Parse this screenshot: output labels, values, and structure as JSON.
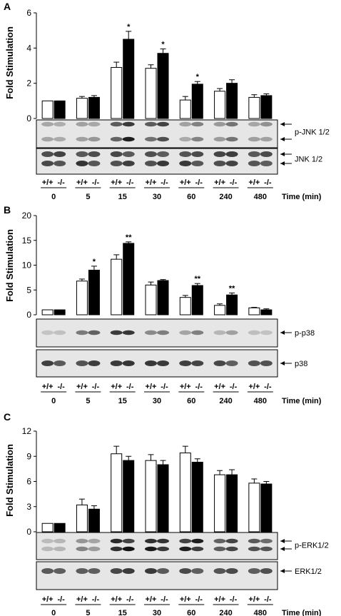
{
  "chart_data": [
    {
      "type": "bar",
      "panel": "A",
      "ylabel": "Fold Stimulation",
      "ylim": [
        0,
        6
      ],
      "yticks": [
        0,
        2,
        4,
        6
      ],
      "categories": [
        "0",
        "5",
        "15",
        "30",
        "60",
        "240",
        "480"
      ],
      "xlabel": "Time (min)",
      "genotypes": [
        "+/+",
        "-/-"
      ],
      "series": [
        {
          "color": "#ffffff",
          "values": [
            1.0,
            1.15,
            2.9,
            2.85,
            1.05,
            1.55,
            1.2
          ],
          "errors": [
            0.0,
            0.1,
            0.3,
            0.2,
            0.2,
            0.15,
            0.15
          ]
        },
        {
          "color": "#000000",
          "values": [
            1.0,
            1.2,
            4.5,
            3.7,
            1.95,
            2.0,
            1.3
          ],
          "errors": [
            0.0,
            0.1,
            0.45,
            0.25,
            0.15,
            0.2,
            0.1
          ]
        }
      ],
      "significance": [
        "",
        "",
        "*",
        "*",
        "*",
        "",
        ""
      ],
      "blots": [
        {
          "label": "p-JNK 1/2",
          "arrows": 2
        },
        {
          "label": "JNK 1/2",
          "arrows": 2
        }
      ]
    },
    {
      "type": "bar",
      "panel": "B",
      "ylabel": "Fold Stimulation",
      "ylim": [
        0,
        20
      ],
      "yticks": [
        0,
        5,
        10,
        15,
        20
      ],
      "categories": [
        "0",
        "5",
        "15",
        "30",
        "60",
        "240",
        "480"
      ],
      "xlabel": "Time (min)",
      "genotypes": [
        "+/+",
        "-/-"
      ],
      "series": [
        {
          "color": "#ffffff",
          "values": [
            1.0,
            6.8,
            11.2,
            6.0,
            3.5,
            1.9,
            1.4
          ],
          "errors": [
            0.0,
            0.4,
            0.9,
            0.6,
            0.4,
            0.3,
            0.1
          ]
        },
        {
          "color": "#000000",
          "values": [
            1.0,
            9.0,
            14.4,
            6.9,
            5.9,
            4.0,
            1.0
          ],
          "errors": [
            0.0,
            0.8,
            0.3,
            0.2,
            0.4,
            0.4,
            0.2
          ]
        }
      ],
      "significance": [
        "",
        "*",
        "**",
        "",
        "**",
        "**",
        ""
      ],
      "blots": [
        {
          "label": "p-p38",
          "arrows": 1
        },
        {
          "label": "p38",
          "arrows": 1
        }
      ]
    },
    {
      "type": "bar",
      "panel": "C",
      "ylabel": "Fold Stimulation",
      "ylim": [
        0,
        12
      ],
      "yticks": [
        0,
        3,
        6,
        9,
        12
      ],
      "categories": [
        "0",
        "5",
        "15",
        "30",
        "60",
        "240",
        "480"
      ],
      "xlabel": "Time (min)",
      "genotypes": [
        "+/+",
        "-/-"
      ],
      "series": [
        {
          "color": "#ffffff",
          "values": [
            1.0,
            3.2,
            9.3,
            8.5,
            9.4,
            6.8,
            5.8
          ],
          "errors": [
            0.0,
            0.7,
            0.9,
            0.7,
            0.8,
            0.5,
            0.5
          ]
        },
        {
          "color": "#000000",
          "values": [
            1.0,
            2.7,
            8.5,
            8.0,
            8.3,
            6.8,
            5.7
          ],
          "errors": [
            0.0,
            0.4,
            0.5,
            0.5,
            0.4,
            0.6,
            0.3
          ]
        }
      ],
      "significance": [
        "",
        "",
        "",
        "",
        "",
        "",
        ""
      ],
      "blots": [
        {
          "label": "p-ERK1/2",
          "arrows": 2
        },
        {
          "label": "ERK1/2",
          "arrows": 1
        }
      ]
    }
  ]
}
